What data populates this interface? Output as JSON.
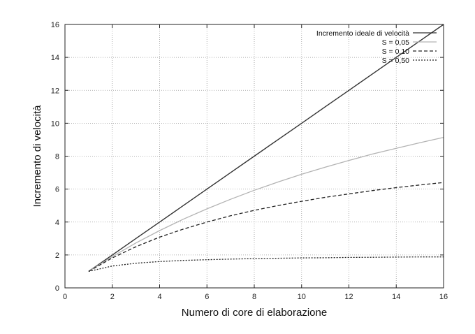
{
  "chart_data": {
    "type": "line",
    "xlabel": "Numero di core di elaborazione",
    "ylabel": "Incremento di velocità",
    "xlim": [
      0,
      16
    ],
    "ylim": [
      0,
      16
    ],
    "x_ticks": [
      0,
      2,
      4,
      6,
      8,
      10,
      12,
      14,
      16
    ],
    "y_ticks": [
      0,
      2,
      4,
      6,
      8,
      10,
      12,
      14,
      16
    ],
    "x_tick_labels": [
      "0",
      "2",
      "4",
      "6",
      "8",
      "10",
      "12",
      "14",
      "16"
    ],
    "y_tick_labels": [
      "0",
      "2",
      "4",
      "6",
      "8",
      "10",
      "12",
      "14",
      "16"
    ],
    "grid": true,
    "legend_position": "top-right",
    "series": [
      {
        "name": "Incremento ideale di velocità",
        "color": "#333333",
        "style": "solid",
        "x": [
          1,
          2,
          3,
          4,
          5,
          6,
          7,
          8,
          9,
          10,
          11,
          12,
          13,
          14,
          15,
          16
        ],
        "y": [
          1,
          2,
          3,
          4,
          5,
          6,
          7,
          8,
          9,
          10,
          11,
          12,
          13,
          14,
          15,
          16
        ]
      },
      {
        "name": "S = 0,05",
        "color": "#b3b3b3",
        "style": "solid",
        "x": [
          1,
          2,
          3,
          4,
          5,
          6,
          7,
          8,
          9,
          10,
          11,
          12,
          13,
          14,
          15,
          16
        ],
        "y": [
          1.0,
          1.9,
          2.73,
          3.48,
          4.17,
          4.8,
          5.38,
          5.93,
          6.43,
          6.9,
          7.33,
          7.74,
          8.13,
          8.48,
          8.82,
          9.14
        ]
      },
      {
        "name": "S = 0,10",
        "color": "#222222",
        "style": "dashed",
        "x": [
          1,
          2,
          3,
          4,
          5,
          6,
          7,
          8,
          9,
          10,
          11,
          12,
          13,
          14,
          15,
          16
        ],
        "y": [
          1.0,
          1.82,
          2.5,
          3.08,
          3.57,
          4.0,
          4.38,
          4.71,
          5.0,
          5.26,
          5.5,
          5.71,
          5.91,
          6.09,
          6.25,
          6.4
        ]
      },
      {
        "name": "S = 0,50",
        "color": "#222222",
        "style": "dotted",
        "x": [
          1,
          2,
          3,
          4,
          5,
          6,
          7,
          8,
          9,
          10,
          11,
          12,
          13,
          14,
          15,
          16
        ],
        "y": [
          1.0,
          1.33,
          1.5,
          1.6,
          1.67,
          1.71,
          1.75,
          1.78,
          1.8,
          1.82,
          1.83,
          1.85,
          1.86,
          1.87,
          1.88,
          1.88
        ]
      }
    ]
  }
}
